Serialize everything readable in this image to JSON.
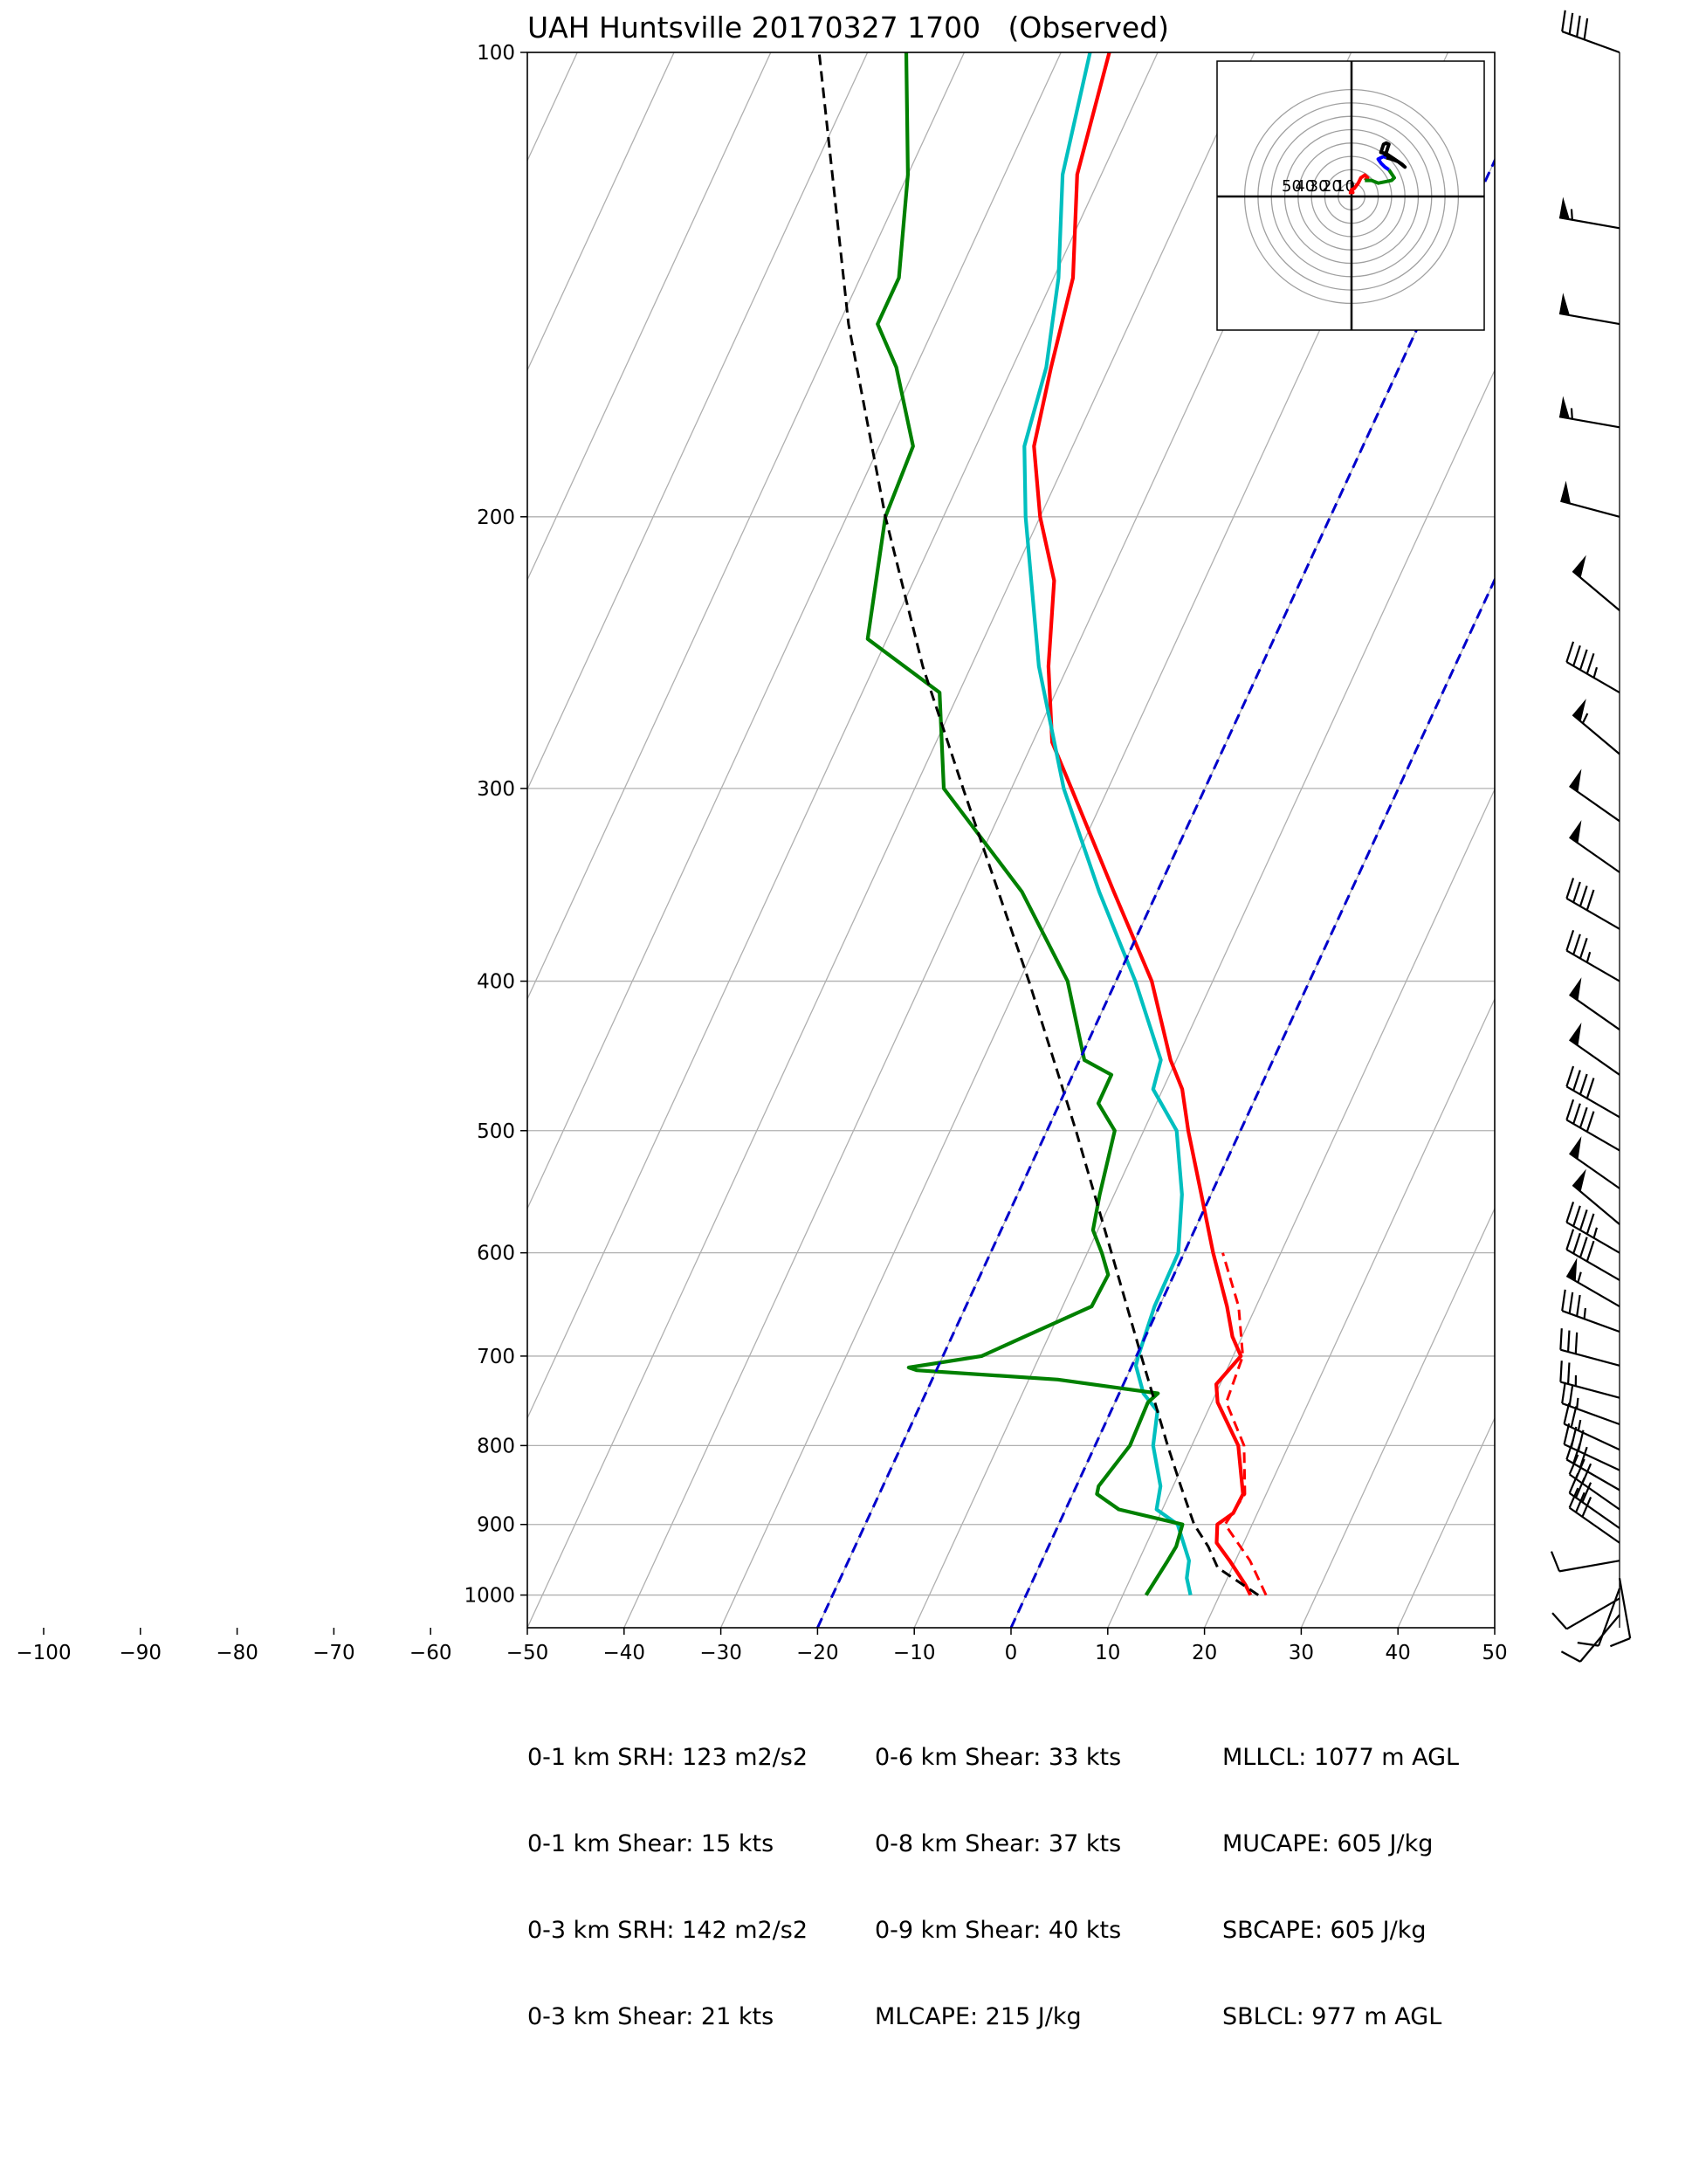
{
  "title": "UAH Huntsville 20170327 1700   (Observed)",
  "chart_data": {
    "type": "skew-t",
    "title": "UAH Huntsville 20170327 1700   (Observed)",
    "xlim": [
      -50,
      50
    ],
    "ylim_hpa": [
      1050,
      100
    ],
    "x_ticks": [
      -100,
      -90,
      -80,
      -70,
      -60,
      -50,
      -40,
      -30,
      -20,
      -10,
      0,
      10,
      20,
      30,
      40,
      50
    ],
    "x_tick_labels": [
      "−100",
      "−90",
      "−80",
      "−70",
      "−60",
      "−50",
      "−40",
      "−30",
      "−20",
      "−10",
      "0",
      "10",
      "20",
      "30",
      "40",
      "50"
    ],
    "y_ticks": [
      100,
      200,
      300,
      400,
      500,
      600,
      700,
      800,
      900,
      1000
    ],
    "y_tick_labels": [
      "100",
      "200",
      "300",
      "400",
      "500",
      "600",
      "700",
      "800",
      "900",
      "1000"
    ],
    "grid": true,
    "series": [
      {
        "color": "#ff0000",
        "points": [
          [
            1000,
            23.2
          ],
          [
            985,
            22.2
          ],
          [
            950,
            19.4
          ],
          [
            925,
            17.2
          ],
          [
            900,
            16.4
          ],
          [
            885,
            17.5
          ],
          [
            860,
            17.6
          ],
          [
            800,
            14.8
          ],
          [
            750,
            10.6
          ],
          [
            730,
            9.6
          ],
          [
            700,
            10.8
          ],
          [
            680,
            9.0
          ],
          [
            650,
            7.0
          ],
          [
            600,
            3.0
          ],
          [
            550,
            -1.0
          ],
          [
            500,
            -5.4
          ],
          [
            470,
            -8.0
          ],
          [
            450,
            -10.6
          ],
          [
            400,
            -16.3
          ],
          [
            350,
            -24.5
          ],
          [
            300,
            -33.8
          ],
          [
            280,
            -38.0
          ],
          [
            250,
            -42.0
          ],
          [
            220,
            -45.5
          ],
          [
            200,
            -50.0
          ],
          [
            180,
            -54.0
          ],
          [
            160,
            -56.0
          ],
          [
            140,
            -58.0
          ],
          [
            120,
            -62.5
          ],
          [
            100,
            -65.0
          ]
        ]
      },
      {
        "color": "#ff0000",
        "dashed": true,
        "points": [
          [
            1000,
            24.8
          ],
          [
            950,
            21.5
          ],
          [
            900,
            17.2
          ],
          [
            860,
            17.8
          ],
          [
            800,
            15.4
          ],
          [
            750,
            11.5
          ],
          [
            700,
            11.0
          ],
          [
            650,
            8.2
          ],
          [
            600,
            4.0
          ]
        ]
      },
      {
        "color": "#00bfbf",
        "points": [
          [
            1000,
            17.0
          ],
          [
            975,
            15.8
          ],
          [
            950,
            15.2
          ],
          [
            900,
            12.3
          ],
          [
            880,
            9.4
          ],
          [
            850,
            8.7
          ],
          [
            800,
            6.0
          ],
          [
            760,
            4.8
          ],
          [
            740,
            2.5
          ],
          [
            710,
            0.4
          ],
          [
            700,
            0.2
          ],
          [
            650,
            -0.5
          ],
          [
            600,
            -0.6
          ],
          [
            550,
            -3.0
          ],
          [
            500,
            -6.6
          ],
          [
            470,
            -11.0
          ],
          [
            450,
            -11.6
          ],
          [
            400,
            -18.0
          ],
          [
            350,
            -26.0
          ],
          [
            300,
            -34.6
          ],
          [
            250,
            -43.0
          ],
          [
            200,
            -51.5
          ],
          [
            180,
            -55.0
          ],
          [
            160,
            -56.5
          ],
          [
            140,
            -59.5
          ],
          [
            120,
            -64.0
          ],
          [
            100,
            -67.0
          ]
        ]
      },
      {
        "color": "#008000",
        "points": [
          [
            1000,
            12.4
          ],
          [
            950,
            13.0
          ],
          [
            930,
            13.2
          ],
          [
            900,
            12.8
          ],
          [
            880,
            5.5
          ],
          [
            860,
            2.5
          ],
          [
            850,
            2.3
          ],
          [
            800,
            3.6
          ],
          [
            750,
            3.4
          ],
          [
            740,
            4.0
          ],
          [
            725,
            -7.0
          ],
          [
            715,
            -22.0
          ],
          [
            712,
            -23.0
          ],
          [
            700,
            -16.0
          ],
          [
            680,
            -12.5
          ],
          [
            650,
            -7.0
          ],
          [
            620,
            -6.8
          ],
          [
            600,
            -8.5
          ],
          [
            580,
            -10.5
          ],
          [
            550,
            -11.5
          ],
          [
            500,
            -13.0
          ],
          [
            480,
            -16.0
          ],
          [
            460,
            -16.0
          ],
          [
            450,
            -19.5
          ],
          [
            400,
            -25.0
          ],
          [
            350,
            -34.0
          ],
          [
            300,
            -47.0
          ],
          [
            260,
            -52.0
          ],
          [
            240,
            -62.0
          ],
          [
            200,
            -66.0
          ],
          [
            180,
            -66.5
          ],
          [
            160,
            -72.0
          ],
          [
            150,
            -76.0
          ],
          [
            140,
            -76.0
          ],
          [
            120,
            -80.0
          ],
          [
            100,
            -86.0
          ]
        ]
      },
      {
        "color": "#000000",
        "dashed": true,
        "points": [
          [
            1000,
            24.0
          ],
          [
            960,
            18.5
          ],
          [
            930,
            16.5
          ],
          [
            900,
            14.0
          ],
          [
            850,
            10.8
          ],
          [
            800,
            7.5
          ],
          [
            700,
            0.5
          ],
          [
            600,
            -7.5
          ],
          [
            500,
            -17.0
          ],
          [
            400,
            -29.0
          ],
          [
            300,
            -45.0
          ],
          [
            250,
            -55.0
          ],
          [
            200,
            -66.0
          ],
          [
            150,
            -79.0
          ],
          [
            100,
            -95.0
          ]
        ]
      },
      {
        "color": "#0000cc",
        "dashed": true,
        "points": [
          [
            1050,
            -20
          ],
          [
            100,
            -20
          ]
        ]
      },
      {
        "color": "#0000cc",
        "dashed": true,
        "points": [
          [
            1050,
            0
          ],
          [
            100,
            0
          ]
        ]
      }
    ],
    "hodograph": {
      "ring_labels": [
        "50",
        "40",
        "30",
        "20",
        "10"
      ],
      "series": [
        {
          "color": "#ff0000",
          "points": [
            [
              -2,
              3
            ],
            [
              1,
              3
            ],
            [
              0,
              5
            ],
            [
              2,
              6
            ],
            [
              5,
              10
            ],
            [
              7,
              14
            ],
            [
              10,
              16
            ],
            [
              12,
              14
            ],
            [
              10,
              12
            ]
          ]
        },
        {
          "color": "#008000",
          "points": [
            [
              10,
              12
            ],
            [
              15,
              12
            ],
            [
              20,
              10
            ],
            [
              25,
              11
            ],
            [
              30,
              12
            ],
            [
              32,
              14
            ],
            [
              28,
              20
            ]
          ]
        },
        {
          "color": "#0000ff",
          "points": [
            [
              28,
              20
            ],
            [
              25,
              22
            ],
            [
              22,
              25
            ],
            [
              20,
              28
            ],
            [
              24,
              30
            ],
            [
              26,
              29
            ]
          ]
        },
        {
          "color": "#000000",
          "points": [
            [
              26,
              29
            ],
            [
              30,
              28
            ],
            [
              35,
              26
            ],
            [
              40,
              22
            ],
            [
              38,
              24
            ],
            [
              32,
              28
            ],
            [
              26,
              32
            ],
            [
              22,
              33
            ],
            [
              23,
              36
            ],
            [
              24,
              39
            ],
            [
              26,
              40
            ],
            [
              28,
              39
            ],
            [
              26,
              33
            ],
            [
              25,
              30
            ]
          ]
        }
      ]
    },
    "wind_barbs": [
      {
        "p": 100,
        "kt": 40,
        "dir": 290
      },
      {
        "p": 130,
        "kt": 55,
        "dir": 280
      },
      {
        "p": 150,
        "kt": 50,
        "dir": 280
      },
      {
        "p": 175,
        "kt": 55,
        "dir": 280
      },
      {
        "p": 200,
        "kt": 50,
        "dir": 285
      },
      {
        "p": 230,
        "kt": 50,
        "dir": 310
      },
      {
        "p": 260,
        "kt": 45,
        "dir": 300
      },
      {
        "p": 285,
        "kt": 55,
        "dir": 310
      },
      {
        "p": 315,
        "kt": 50,
        "dir": 305
      },
      {
        "p": 340,
        "kt": 50,
        "dir": 305
      },
      {
        "p": 370,
        "kt": 40,
        "dir": 300
      },
      {
        "p": 400,
        "kt": 35,
        "dir": 300
      },
      {
        "p": 430,
        "kt": 50,
        "dir": 305
      },
      {
        "p": 460,
        "kt": 50,
        "dir": 305
      },
      {
        "p": 490,
        "kt": 40,
        "dir": 300
      },
      {
        "p": 515,
        "kt": 40,
        "dir": 300
      },
      {
        "p": 545,
        "kt": 50,
        "dir": 305
      },
      {
        "p": 575,
        "kt": 50,
        "dir": 310
      },
      {
        "p": 600,
        "kt": 45,
        "dir": 300
      },
      {
        "p": 625,
        "kt": 40,
        "dir": 300
      },
      {
        "p": 650,
        "kt": 55,
        "dir": 300
      },
      {
        "p": 675,
        "kt": 35,
        "dir": 290
      },
      {
        "p": 710,
        "kt": 30,
        "dir": 285
      },
      {
        "p": 745,
        "kt": 25,
        "dir": 285
      },
      {
        "p": 775,
        "kt": 25,
        "dir": 290
      },
      {
        "p": 805,
        "kt": 25,
        "dir": 295
      },
      {
        "p": 830,
        "kt": 30,
        "dir": 295
      },
      {
        "p": 855,
        "kt": 30,
        "dir": 300
      },
      {
        "p": 880,
        "kt": 30,
        "dir": 305
      },
      {
        "p": 905,
        "kt": 30,
        "dir": 305
      },
      {
        "p": 925,
        "kt": 30,
        "dir": 305
      },
      {
        "p": 950,
        "kt": 10,
        "dir": 260
      },
      {
        "p": 975,
        "kt": 10,
        "dir": 170
      },
      {
        "p": 990,
        "kt": 10,
        "dir": 200
      },
      {
        "p": 1005,
        "kt": 10,
        "dir": 240
      },
      {
        "p": 1030,
        "kt": 10,
        "dir": 220
      }
    ]
  },
  "params": {
    "col1": [
      "0-1 km SRH: 123 m2/s2",
      "0-1 km Shear: 15 kts",
      "0-3 km SRH: 142 m2/s2",
      "0-3 km Shear: 21 kts"
    ],
    "col2": [
      "0-6 km Shear: 33 kts",
      "0-8 km Shear: 37 kts",
      "0-9 km Shear: 40 kts",
      "MLCAPE: 215 J/kg"
    ],
    "col3": [
      "MLLCL: 1077 m AGL",
      "MUCAPE: 605 J/kg",
      "SBCAPE: 605 J/kg",
      "SBLCL: 977 m AGL"
    ]
  }
}
